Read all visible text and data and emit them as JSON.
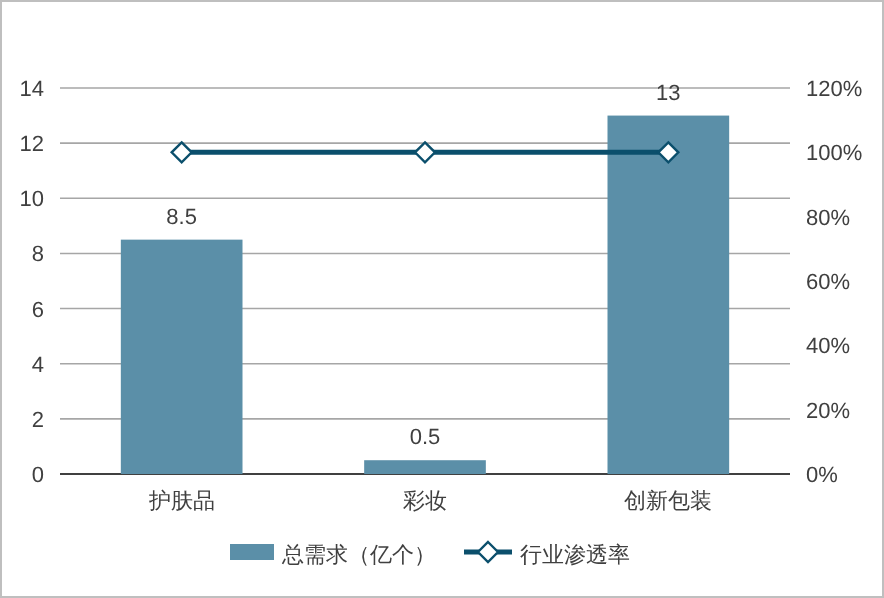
{
  "chart_data": {
    "type": "bar",
    "categories": [
      "护肤品",
      "彩妆",
      "创新包装"
    ],
    "series": [
      {
        "name": "总需求（亿个）",
        "color": "#5b8fa8",
        "values": [
          8.5,
          0.5,
          13
        ],
        "value_labels": [
          "8.5",
          "0.5",
          "13"
        ]
      },
      {
        "name": "行业渗透率",
        "type": "line",
        "axis": "y2",
        "color": "#0b4f6c",
        "values": [
          100,
          100,
          100
        ],
        "marker": "diamond"
      }
    ],
    "ylim": [
      0,
      14
    ],
    "yticks": [
      0,
      2,
      4,
      6,
      8,
      10,
      12,
      14
    ],
    "y2lim": [
      0,
      120
    ],
    "y2ticks": [
      {
        "value": 0,
        "label": "0%"
      },
      {
        "value": 20,
        "label": "20%"
      },
      {
        "value": 40,
        "label": "40%"
      },
      {
        "value": 60,
        "label": "60%"
      },
      {
        "value": 80,
        "label": "80%"
      },
      {
        "value": 100,
        "label": "100%"
      },
      {
        "value": 120,
        "label": "120%"
      }
    ],
    "grid": "y",
    "legend": "bottom"
  }
}
